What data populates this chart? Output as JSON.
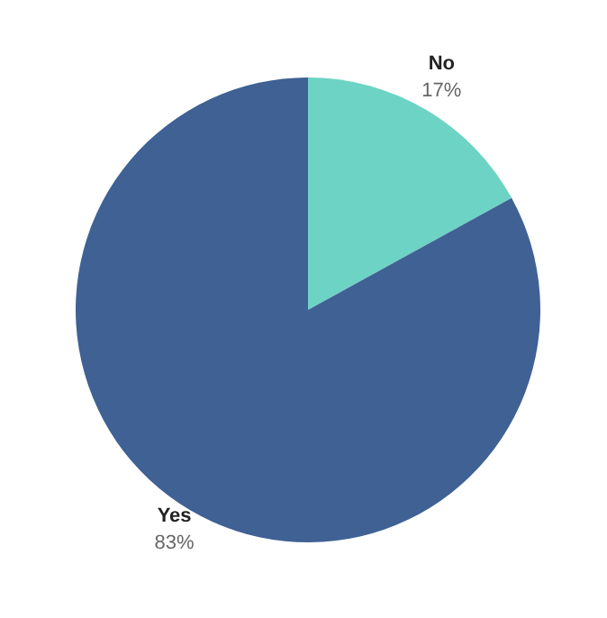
{
  "chart_data": {
    "type": "pie",
    "categories": [
      "No",
      "Yes"
    ],
    "values": [
      17,
      83
    ],
    "colors": [
      "#6dd3c4",
      "#3f6194"
    ],
    "value_labels": [
      "17%",
      "83%"
    ]
  }
}
